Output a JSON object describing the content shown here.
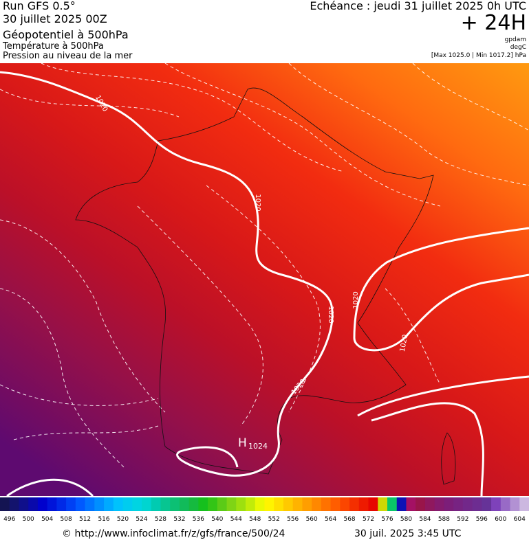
{
  "header": {
    "run": "Run GFS 0.5°",
    "date": "30 juillet 2025 00Z",
    "title": "Géopotentiel à 500hPa",
    "subtitle1": "Température à 500hPa",
    "subtitle2": "Pression au niveau de la mer",
    "echeance": "Echéance : jeudi 31 juillet 2025 0h UTC",
    "lead": "+ 24H",
    "unit1": "gpdam",
    "unit2": "degC",
    "range": "[Max 1025.0 | Min 1017.2] hPa"
  },
  "map": {
    "isobar_labels": [
      "1020",
      "1020",
      "1020",
      "1020",
      "1020",
      "1020"
    ],
    "high": "H",
    "high_value": "1024"
  },
  "colorbar": {
    "ticks": [
      496,
      500,
      504,
      508,
      512,
      516,
      520,
      524,
      528,
      532,
      536,
      540,
      544,
      548,
      552,
      556,
      560,
      564,
      568,
      572,
      576,
      580,
      584,
      588,
      592,
      596,
      600,
      604
    ]
  },
  "footer": {
    "source": "© http://www.infoclimat.fr/z/gfs/france/500/24",
    "time": "30 juil. 2025  3:45 UTC"
  }
}
